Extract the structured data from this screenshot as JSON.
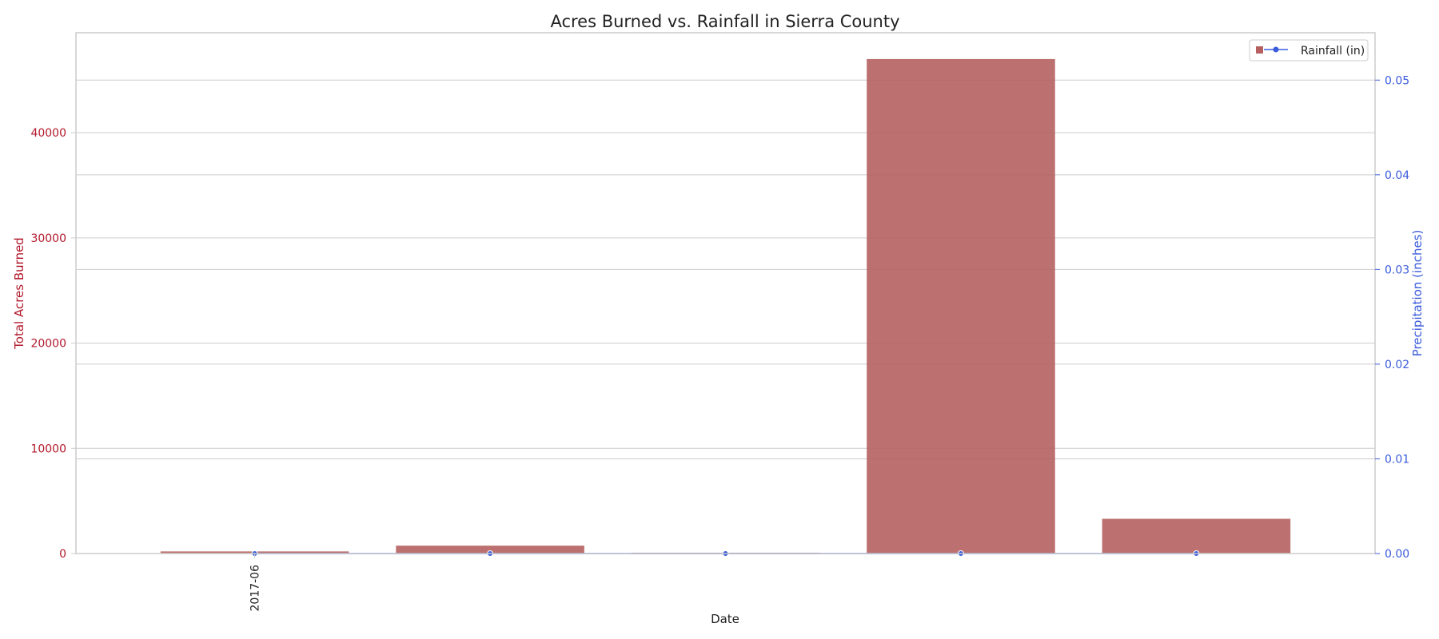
{
  "chart_data": {
    "type": "bar",
    "title": "Acres Burned vs. Rainfall in Sierra County",
    "xlabel": "Date",
    "ylabel_left": "Total Acres Burned",
    "ylabel_right": "Precipitation (inches)",
    "x_tick_labels": [
      "2017-06",
      "",
      "",
      "",
      ""
    ],
    "categories": [
      "2017-06",
      "",
      "",
      "",
      ""
    ],
    "y_left_lim": [
      0,
      49500
    ],
    "y_left_ticks": [
      0,
      10000,
      20000,
      30000,
      40000
    ],
    "y_right_lim": [
      0,
      0.055
    ],
    "y_right_ticks": [
      "0.00",
      "0.01",
      "0.02",
      "0.03",
      "0.04",
      "0.05"
    ],
    "grid": true,
    "series": [
      {
        "name": "",
        "kind": "bar",
        "axis": "left",
        "color": "#b5605f",
        "values": [
          200,
          750,
          80,
          47000,
          3300
        ]
      },
      {
        "name": "Rainfall (in)",
        "kind": "line",
        "axis": "right",
        "color": "#3b5bdb",
        "values": [
          0,
          0,
          0,
          0,
          0
        ]
      }
    ],
    "legend": {
      "position": "top-right",
      "entries": [
        "Rainfall (in)"
      ]
    },
    "colors": {
      "left_axis": "#b2182b",
      "right_axis": "#3b5bdb",
      "grid": "#cccccc",
      "frame": "#cccccc"
    }
  }
}
